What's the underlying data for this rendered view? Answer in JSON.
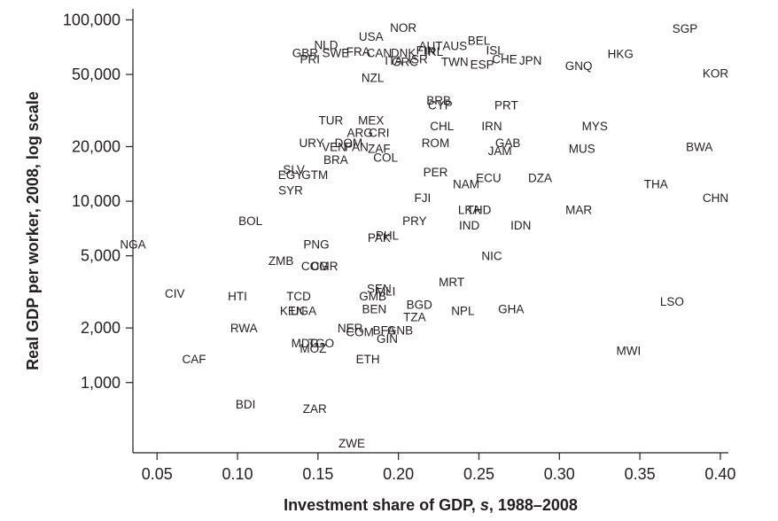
{
  "chart_data": {
    "type": "scatter",
    "title": "",
    "xlabel_prefix": "Investment share of GDP, ",
    "xlabel_var": "s",
    "xlabel_suffix": ", 1988–2008",
    "ylabel": "Real GDP per worker, 2008, log scale",
    "xlim": [
      0.035,
      0.405
    ],
    "ylim": [
      410,
      115000
    ],
    "yscale": "log",
    "grid": false,
    "x_ticks": [
      {
        "value": 0.05,
        "label": "0.05"
      },
      {
        "value": 0.1,
        "label": "0.10"
      },
      {
        "value": 0.15,
        "label": "0.15"
      },
      {
        "value": 0.2,
        "label": "0.20"
      },
      {
        "value": 0.25,
        "label": "0.25"
      },
      {
        "value": 0.3,
        "label": "0.30"
      },
      {
        "value": 0.35,
        "label": "0.35"
      },
      {
        "value": 0.4,
        "label": "0.40"
      }
    ],
    "y_ticks": [
      {
        "value": 1000,
        "label": "1,000"
      },
      {
        "value": 2000,
        "label": "2,000"
      },
      {
        "value": 5000,
        "label": "5,000"
      },
      {
        "value": 10000,
        "label": "10,000"
      },
      {
        "value": 20000,
        "label": "20,000"
      },
      {
        "value": 50000,
        "label": "50,000"
      },
      {
        "value": 100000,
        "label": "100,000"
      }
    ],
    "points": [
      {
        "label": "SGP",
        "x": 0.378,
        "y": 90000
      },
      {
        "label": "HKG",
        "x": 0.338,
        "y": 65000
      },
      {
        "label": "KOR",
        "x": 0.397,
        "y": 51000
      },
      {
        "label": "GNQ",
        "x": 0.312,
        "y": 56000
      },
      {
        "label": "JPN",
        "x": 0.282,
        "y": 60000
      },
      {
        "label": "NOR",
        "x": 0.203,
        "y": 91000
      },
      {
        "label": "USA",
        "x": 0.183,
        "y": 81000
      },
      {
        "label": "NLD",
        "x": 0.155,
        "y": 73000
      },
      {
        "label": "GBR",
        "x": 0.142,
        "y": 66000
      },
      {
        "label": "PRI",
        "x": 0.145,
        "y": 61000
      },
      {
        "label": "SWE",
        "x": 0.161,
        "y": 66000
      },
      {
        "label": "FRA",
        "x": 0.175,
        "y": 67000
      },
      {
        "label": "CAN",
        "x": 0.188,
        "y": 66000
      },
      {
        "label": "DNK",
        "x": 0.203,
        "y": 66000
      },
      {
        "label": "FIN",
        "x": 0.217,
        "y": 68000
      },
      {
        "label": "ITA",
        "x": 0.197,
        "y": 60000
      },
      {
        "label": "GRC",
        "x": 0.204,
        "y": 59000
      },
      {
        "label": "ISR",
        "x": 0.212,
        "y": 61000
      },
      {
        "label": "IRL",
        "x": 0.222,
        "y": 67000
      },
      {
        "label": "AUT",
        "x": 0.22,
        "y": 72000
      },
      {
        "label": "AUS",
        "x": 0.235,
        "y": 72000
      },
      {
        "label": "BEL",
        "x": 0.25,
        "y": 77000
      },
      {
        "label": "ISL",
        "x": 0.26,
        "y": 68000
      },
      {
        "label": "CHE",
        "x": 0.266,
        "y": 61000
      },
      {
        "label": "TWN",
        "x": 0.235,
        "y": 59000
      },
      {
        "label": "ESP",
        "x": 0.252,
        "y": 57000
      },
      {
        "label": "NZL",
        "x": 0.184,
        "y": 48000
      },
      {
        "label": "PRT",
        "x": 0.267,
        "y": 34000
      },
      {
        "label": "BRB",
        "x": 0.225,
        "y": 36000
      },
      {
        "label": "CYP",
        "x": 0.226,
        "y": 34000
      },
      {
        "label": "TUR",
        "x": 0.158,
        "y": 28000
      },
      {
        "label": "MEX",
        "x": 0.183,
        "y": 28000
      },
      {
        "label": "CHL",
        "x": 0.227,
        "y": 26000
      },
      {
        "label": "IRN",
        "x": 0.258,
        "y": 26000
      },
      {
        "label": "MYS",
        "x": 0.322,
        "y": 26000
      },
      {
        "label": "ARG",
        "x": 0.176,
        "y": 24000
      },
      {
        "label": "CRI",
        "x": 0.188,
        "y": 24000
      },
      {
        "label": "URY",
        "x": 0.146,
        "y": 21000
      },
      {
        "label": "VEN",
        "x": 0.16,
        "y": 20000
      },
      {
        "label": "PAN",
        "x": 0.174,
        "y": 20000
      },
      {
        "label": "DOM",
        "x": 0.169,
        "y": 21000
      },
      {
        "label": "ZAF",
        "x": 0.188,
        "y": 19500
      },
      {
        "label": "ROM",
        "x": 0.223,
        "y": 21000
      },
      {
        "label": "GAB",
        "x": 0.268,
        "y": 21000
      },
      {
        "label": "JAM",
        "x": 0.263,
        "y": 19000
      },
      {
        "label": "MUS",
        "x": 0.314,
        "y": 19500
      },
      {
        "label": "BWA",
        "x": 0.387,
        "y": 20000
      },
      {
        "label": "COL",
        "x": 0.192,
        "y": 17500
      },
      {
        "label": "BRA",
        "x": 0.161,
        "y": 17000
      },
      {
        "label": "SLV",
        "x": 0.135,
        "y": 15000
      },
      {
        "label": "GTM",
        "x": 0.148,
        "y": 14000
      },
      {
        "label": "EGY",
        "x": 0.133,
        "y": 14000
      },
      {
        "label": "PER",
        "x": 0.223,
        "y": 14500
      },
      {
        "label": "ECU",
        "x": 0.256,
        "y": 13500
      },
      {
        "label": "NAM",
        "x": 0.242,
        "y": 12500
      },
      {
        "label": "DZA",
        "x": 0.288,
        "y": 13500
      },
      {
        "label": "THA",
        "x": 0.36,
        "y": 12500
      },
      {
        "label": "SYR",
        "x": 0.133,
        "y": 11500
      },
      {
        "label": "FJI",
        "x": 0.215,
        "y": 10500
      },
      {
        "label": "CHN",
        "x": 0.397,
        "y": 10500
      },
      {
        "label": "LKA",
        "x": 0.244,
        "y": 9000
      },
      {
        "label": "THD",
        "x": 0.25,
        "y": 9000
      },
      {
        "label": "MAR",
        "x": 0.312,
        "y": 9000
      },
      {
        "label": "BOL",
        "x": 0.108,
        "y": 7800
      },
      {
        "label": "PRY",
        "x": 0.21,
        "y": 7800
      },
      {
        "label": "IND",
        "x": 0.244,
        "y": 7400
      },
      {
        "label": "IDN",
        "x": 0.276,
        "y": 7400
      },
      {
        "label": "PHL",
        "x": 0.193,
        "y": 6500
      },
      {
        "label": "PAK",
        "x": 0.188,
        "y": 6300
      },
      {
        "label": "NGA",
        "x": 0.035,
        "y": 5800
      },
      {
        "label": "PNG",
        "x": 0.149,
        "y": 5800
      },
      {
        "label": "NIC",
        "x": 0.258,
        "y": 5000
      },
      {
        "label": "ZMB",
        "x": 0.127,
        "y": 4700
      },
      {
        "label": "COG",
        "x": 0.148,
        "y": 4400
      },
      {
        "label": "CMR",
        "x": 0.154,
        "y": 4400
      },
      {
        "label": "MRT",
        "x": 0.233,
        "y": 3600
      },
      {
        "label": "CIV",
        "x": 0.061,
        "y": 3100
      },
      {
        "label": "HTI",
        "x": 0.1,
        "y": 3000
      },
      {
        "label": "TCD",
        "x": 0.138,
        "y": 3000
      },
      {
        "label": "SEN",
        "x": 0.188,
        "y": 3300
      },
      {
        "label": "MLI",
        "x": 0.192,
        "y": 3200
      },
      {
        "label": "GMB",
        "x": 0.184,
        "y": 3000
      },
      {
        "label": "LSO",
        "x": 0.37,
        "y": 2800
      },
      {
        "label": "BGD",
        "x": 0.213,
        "y": 2700
      },
      {
        "label": "KEN",
        "x": 0.134,
        "y": 2500
      },
      {
        "label": "UGA",
        "x": 0.141,
        "y": 2500
      },
      {
        "label": "BEN",
        "x": 0.185,
        "y": 2550
      },
      {
        "label": "NPL",
        "x": 0.24,
        "y": 2500
      },
      {
        "label": "GHA",
        "x": 0.27,
        "y": 2550
      },
      {
        "label": "TZA",
        "x": 0.21,
        "y": 2300
      },
      {
        "label": "RWA",
        "x": 0.104,
        "y": 2000
      },
      {
        "label": "NER",
        "x": 0.17,
        "y": 2000
      },
      {
        "label": "COM",
        "x": 0.176,
        "y": 1900
      },
      {
        "label": "BFA",
        "x": 0.191,
        "y": 1950
      },
      {
        "label": "GNB",
        "x": 0.201,
        "y": 1950
      },
      {
        "label": "GIN",
        "x": 0.193,
        "y": 1750
      },
      {
        "label": "MDG",
        "x": 0.142,
        "y": 1650
      },
      {
        "label": "TGO",
        "x": 0.152,
        "y": 1650
      },
      {
        "label": "MOZ",
        "x": 0.147,
        "y": 1550
      },
      {
        "label": "MWI",
        "x": 0.343,
        "y": 1500
      },
      {
        "label": "CAF",
        "x": 0.073,
        "y": 1350
      },
      {
        "label": "ETH",
        "x": 0.181,
        "y": 1350
      },
      {
        "label": "BDI",
        "x": 0.105,
        "y": 760
      },
      {
        "label": "ZAR",
        "x": 0.148,
        "y": 720
      },
      {
        "label": "ZWE",
        "x": 0.171,
        "y": 465
      }
    ]
  }
}
